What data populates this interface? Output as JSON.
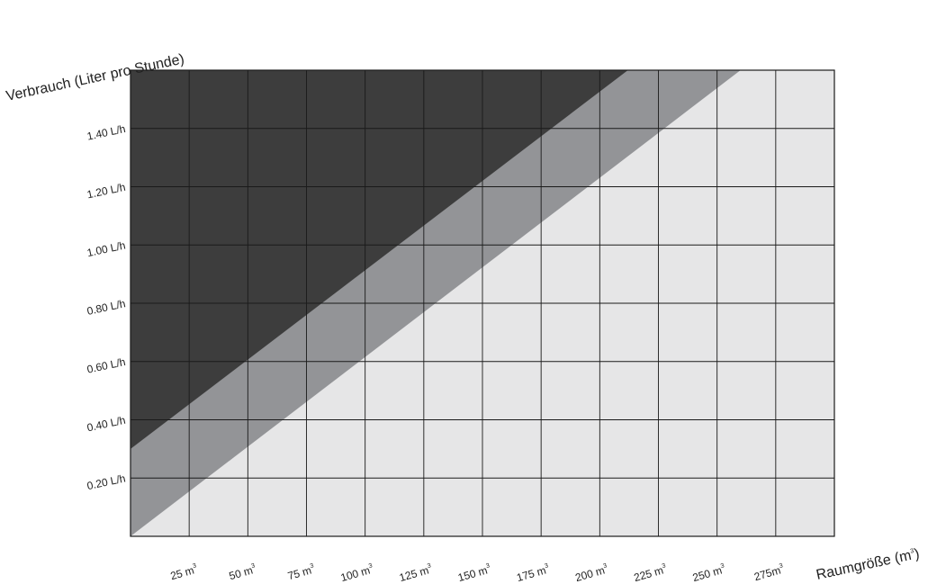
{
  "chart_data": {
    "type": "area",
    "title": "",
    "ylabel": "Verbrauch (Liter pro Stunde)",
    "xlabel": "Raumgröße (m",
    "xlabel_sup": "3",
    "xlabel_close": ")",
    "xlim": [
      0,
      300
    ],
    "ylim": [
      0,
      1.6
    ],
    "x_ticks": [
      {
        "value": 25,
        "label": "25 m",
        "sup": "3"
      },
      {
        "value": 50,
        "label": "50 m",
        "sup": "3"
      },
      {
        "value": 75,
        "label": "75 m",
        "sup": "3"
      },
      {
        "value": 100,
        "label": "100 m",
        "sup": "3"
      },
      {
        "value": 125,
        "label": "125 m",
        "sup": "3"
      },
      {
        "value": 150,
        "label": "150 m",
        "sup": "3"
      },
      {
        "value": 175,
        "label": "175 m",
        "sup": "3"
      },
      {
        "value": 200,
        "label": "200 m",
        "sup": "3"
      },
      {
        "value": 225,
        "label": "225 m",
        "sup": "3"
      },
      {
        "value": 250,
        "label": "250 m",
        "sup": "3"
      },
      {
        "value": 275,
        "label": "275m",
        "sup": "3"
      }
    ],
    "y_ticks": [
      {
        "value": 0.2,
        "label": "0.20 L/h"
      },
      {
        "value": 0.4,
        "label": "0.40 L/h"
      },
      {
        "value": 0.6,
        "label": "0.60 L/h"
      },
      {
        "value": 0.8,
        "label": "0.80 L/h"
      },
      {
        "value": 1.0,
        "label": "1.00 L/h"
      },
      {
        "value": 1.2,
        "label": "1.20 L/h"
      },
      {
        "value": 1.4,
        "label": "1.40 L/h"
      }
    ],
    "boundaries": [
      {
        "id": "upper",
        "points": [
          [
            0,
            0.3
          ],
          [
            212,
            1.6
          ]
        ]
      },
      {
        "id": "lower",
        "points": [
          [
            0,
            0.0
          ],
          [
            260,
            1.6
          ]
        ]
      }
    ],
    "regions": [
      {
        "id": "high",
        "color": "#3d3d3d"
      },
      {
        "id": "mid",
        "color": "#939497"
      },
      {
        "id": "low",
        "color": "#e6e6e7"
      }
    ],
    "grid": true,
    "grid_x_step": 25,
    "grid_y_step": 0.2,
    "grid_color": "#1a1a1a"
  }
}
